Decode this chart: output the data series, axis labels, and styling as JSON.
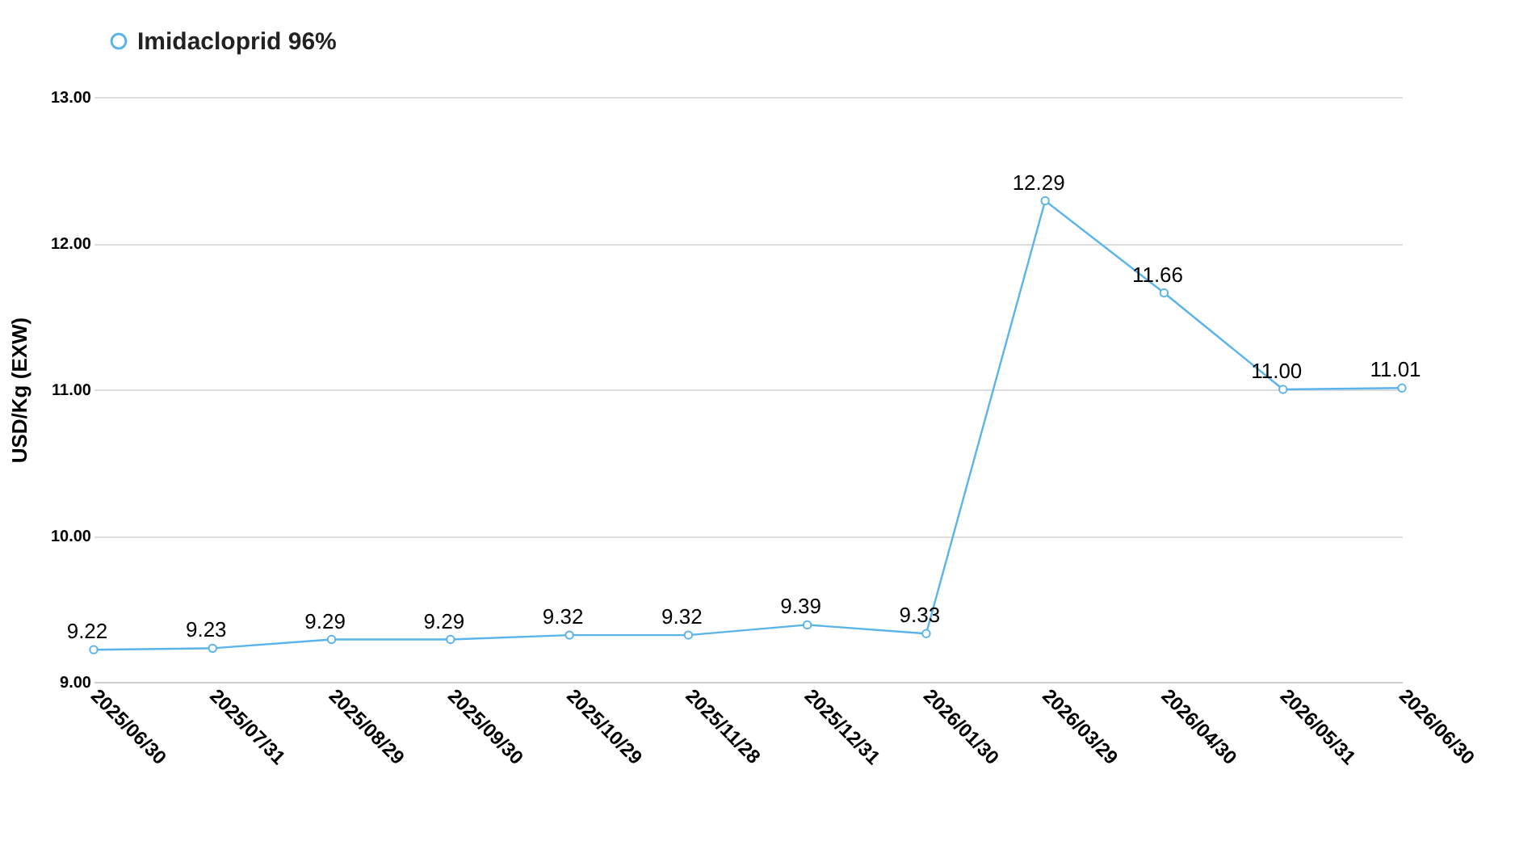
{
  "chart_data": {
    "type": "line",
    "ylabel": "USD/Kg   (EXW)",
    "categories": [
      "2025/06/30",
      "2025/07/31",
      "2025/08/29",
      "2025/09/30",
      "2025/10/29",
      "2025/11/28",
      "2025/12/31",
      "2026/01/30",
      "2026/03/29",
      "2026/04/30",
      "2026/05/31",
      "2026/06/30"
    ],
    "series": [
      {
        "name": "Imidacloprid 96%",
        "color": "#5ab4ec",
        "values": [
          9.22,
          9.23,
          9.29,
          9.29,
          9.32,
          9.32,
          9.39,
          9.33,
          12.29,
          11.66,
          11.0,
          11.01
        ],
        "value_labels": [
          "9.22",
          "9.23",
          "9.29",
          "9.29",
          "9.32",
          "9.32",
          "9.39",
          "9.33",
          "12.29",
          "11.66",
          "11.00",
          "11.01"
        ]
      }
    ],
    "ylim": [
      9,
      13
    ],
    "yticks": [
      {
        "value": 9,
        "label": "9.00"
      },
      {
        "value": 10,
        "label": "10.00"
      },
      {
        "value": 11,
        "label": "11.00"
      },
      {
        "value": 12,
        "label": "12.00"
      },
      {
        "value": 13,
        "label": "13.00"
      }
    ],
    "grid": "y",
    "legend": "top",
    "marker": "circle",
    "line_style": "solid"
  }
}
